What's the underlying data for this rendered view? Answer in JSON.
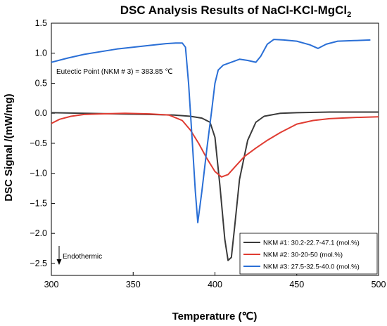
{
  "chart_data": {
    "type": "line",
    "title": "DSC Analysis Results of NaCl-KCl-MgCl",
    "title_subscript": "2",
    "xlabel": "Temperature (℃)",
    "ylabel": "DSC Signal /(mW/mg)",
    "xlim": [
      300,
      500
    ],
    "ylim": [
      -2.7,
      1.5
    ],
    "xticks": [
      300,
      350,
      400,
      450,
      500
    ],
    "xtick_labels": [
      "300",
      "350",
      "400",
      "450",
      "500"
    ],
    "yticks": [
      1.5,
      1.0,
      0.5,
      0.0,
      -0.5,
      -1.0,
      -1.5,
      -2.0,
      -2.5
    ],
    "ytick_labels": [
      "1.5",
      "1.0",
      "0.5",
      "0.0",
      "−0.5",
      "−1.0",
      "−1.5",
      "−2.0",
      "−2.5"
    ],
    "grid": false,
    "legend_position": "bottom-right",
    "annotations": {
      "eutectic": "Eutectic Point (NKM # 3) = 383.85 ℃",
      "endothermic": "Endothermic"
    },
    "series": [
      {
        "name": "NKM #1: 30.2-22.7-47.1 (mol.%)",
        "color": "#3a3a3a",
        "x": [
          300,
          320,
          340,
          360,
          375,
          385,
          392,
          397,
          400,
          403,
          406,
          408,
          410,
          412,
          415,
          420,
          425,
          430,
          440,
          450,
          470,
          500
        ],
        "y": [
          0.01,
          0.0,
          -0.01,
          -0.02,
          -0.03,
          -0.05,
          -0.08,
          -0.15,
          -0.4,
          -1.2,
          -2.1,
          -2.45,
          -2.4,
          -1.9,
          -1.1,
          -0.45,
          -0.15,
          -0.05,
          0.0,
          0.01,
          0.02,
          0.02
        ]
      },
      {
        "name": "NKM #2: 30-20-50 (mol.%)",
        "color": "#e03c32",
        "x": [
          300,
          305,
          312,
          320,
          330,
          345,
          360,
          372,
          380,
          385,
          390,
          395,
          400,
          404,
          408,
          412,
          418,
          425,
          432,
          440,
          450,
          460,
          470,
          485,
          500
        ],
        "y": [
          -0.17,
          -0.1,
          -0.05,
          -0.02,
          -0.01,
          0.0,
          -0.01,
          -0.03,
          -0.12,
          -0.28,
          -0.5,
          -0.75,
          -0.97,
          -1.06,
          -1.02,
          -0.9,
          -0.72,
          -0.58,
          -0.45,
          -0.32,
          -0.18,
          -0.12,
          -0.09,
          -0.07,
          -0.06
        ]
      },
      {
        "name": "NKM #3: 27.5-32.5-40.0 (mol.%)",
        "color": "#2a6fd6",
        "x": [
          300,
          310,
          320,
          340,
          360,
          370,
          376,
          380,
          382,
          383.85,
          386,
          388,
          389.5,
          392,
          395,
          398,
          400,
          402,
          405,
          410,
          415,
          420,
          425,
          428,
          432,
          436,
          442,
          450,
          458,
          463,
          468,
          475,
          485,
          495
        ],
        "y": [
          0.85,
          0.92,
          0.98,
          1.07,
          1.13,
          1.16,
          1.17,
          1.17,
          1.1,
          0.5,
          -0.4,
          -1.3,
          -1.82,
          -1.3,
          -0.6,
          0.05,
          0.5,
          0.72,
          0.8,
          0.85,
          0.9,
          0.88,
          0.85,
          0.95,
          1.15,
          1.23,
          1.22,
          1.2,
          1.14,
          1.08,
          1.15,
          1.2,
          1.21,
          1.22
        ]
      }
    ]
  }
}
